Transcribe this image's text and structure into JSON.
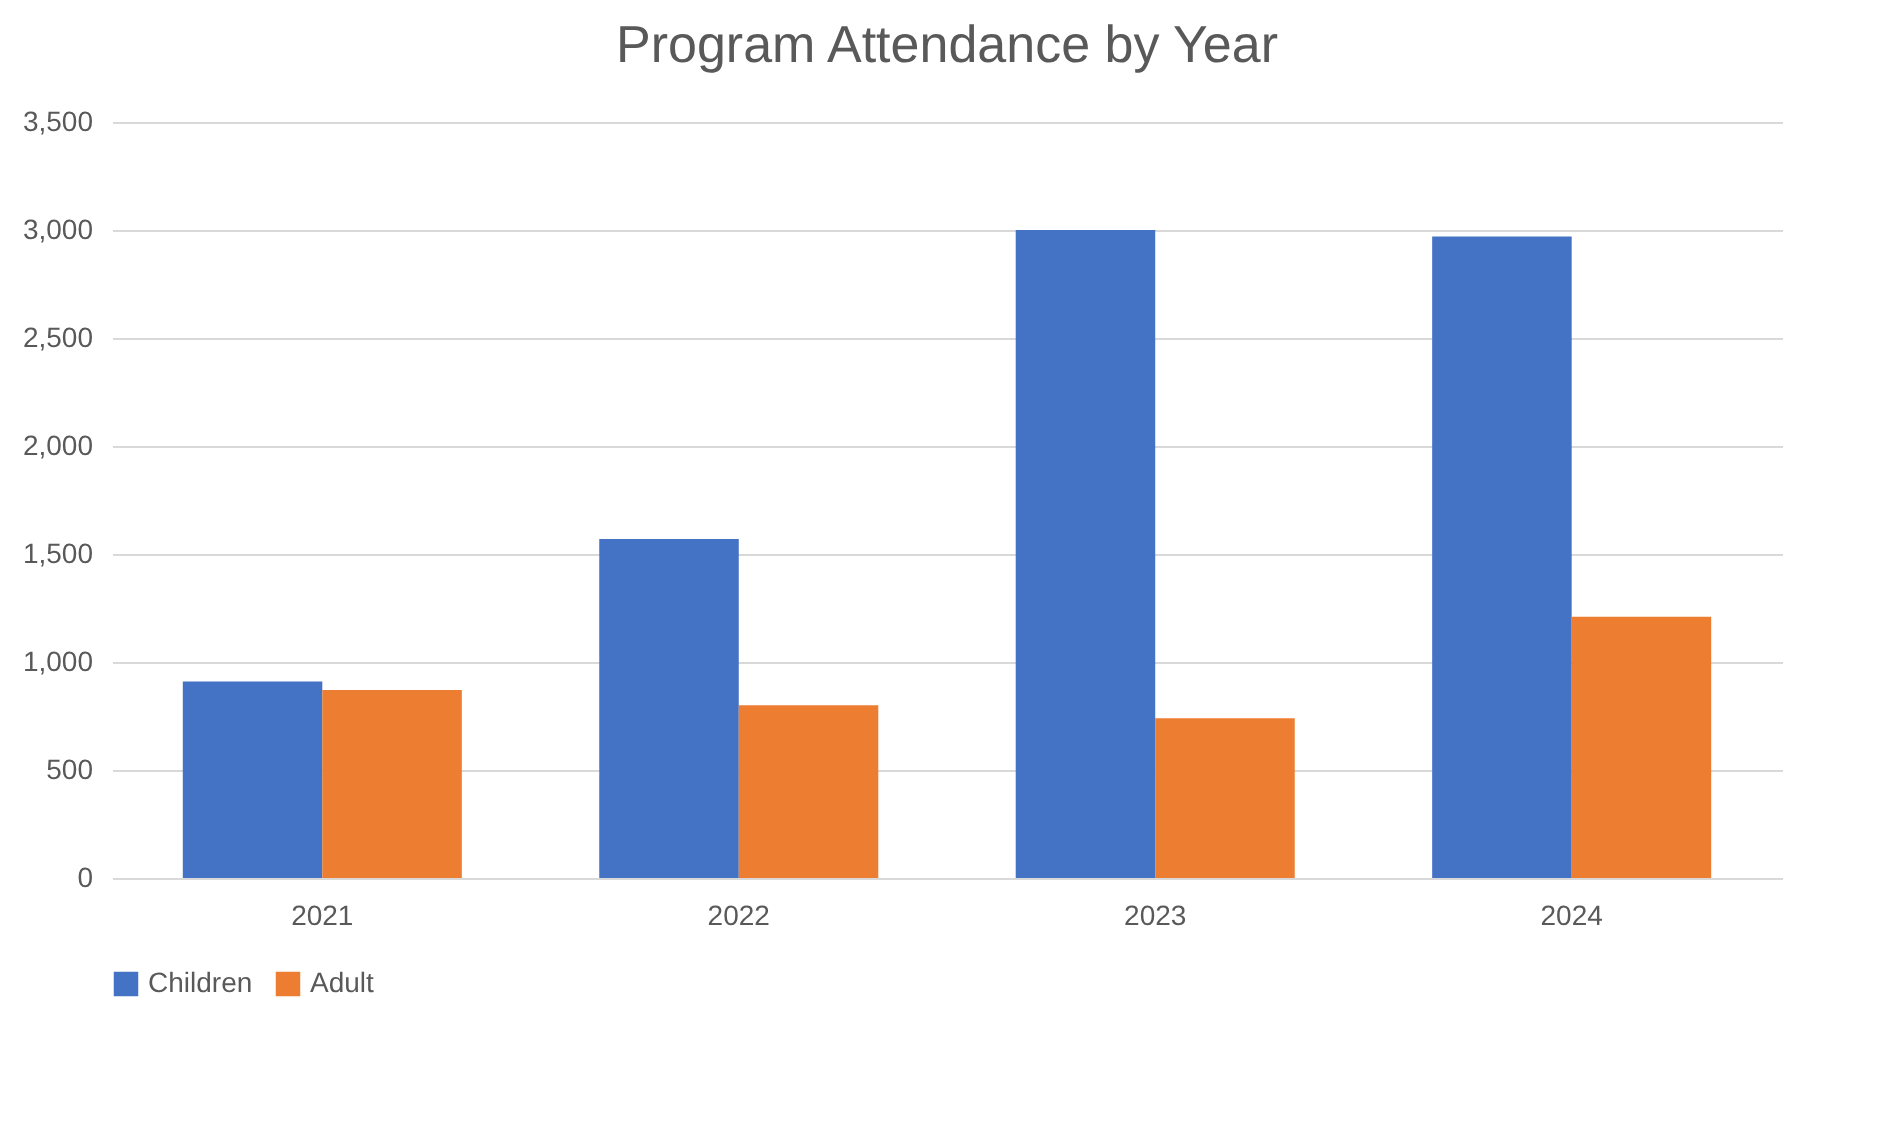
{
  "chart_data": {
    "type": "bar",
    "title": "Program Attendance by Year",
    "categories": [
      "2021",
      "2022",
      "2023",
      "2024"
    ],
    "series": [
      {
        "name": "Children",
        "color": "#4472c4",
        "values": [
          910,
          1570,
          3000,
          2970
        ]
      },
      {
        "name": "Adult",
        "color": "#ed7d31",
        "values": [
          870,
          800,
          740,
          1210
        ]
      }
    ],
    "ylim": [
      0,
      3500
    ],
    "yticks": [
      0,
      500,
      {
        "value": 1000,
        "label": "1,000"
      },
      {
        "value": 1500,
        "label": "1,500"
      },
      {
        "value": 2000,
        "label": "2,000"
      },
      {
        "value": 2500,
        "label": "2,500"
      },
      {
        "value": 3000,
        "label": "3,000"
      },
      {
        "value": 3500,
        "label": "3,500"
      }
    ],
    "grid": "y",
    "legend": "bottom"
  }
}
